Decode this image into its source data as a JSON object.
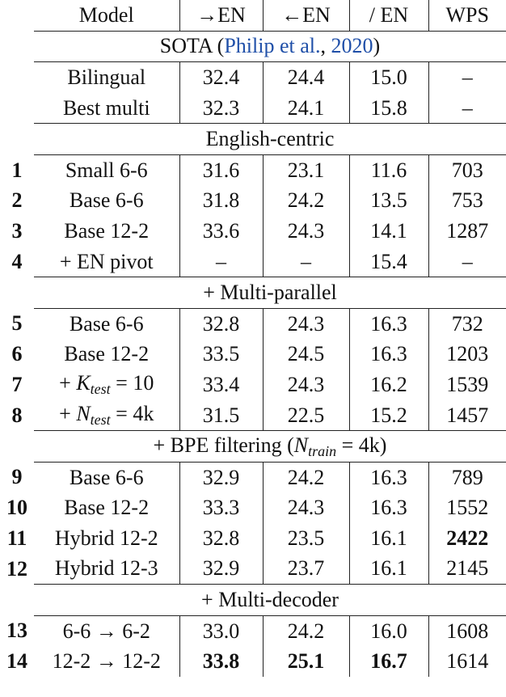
{
  "table": {
    "header": [
      "Model",
      "→EN",
      "←EN",
      "/ EN",
      "WPS"
    ],
    "sections": [
      {
        "title": [
          "SOTA (",
          {
            "text": "Philip et al.",
            "style": "cite"
          },
          ", ",
          {
            "text": "2020",
            "style": "cite"
          },
          ")"
        ],
        "rows": [
          {
            "model": "Bilingual",
            "cells": [
              "32.4",
              "24.4",
              "15.0",
              "–"
            ]
          },
          {
            "model": "Best multi",
            "cells": [
              "32.3",
              "24.1",
              "15.8",
              "–"
            ]
          }
        ]
      },
      {
        "title": "English-centric",
        "rows": [
          {
            "id": "1",
            "model": "Small 6-6",
            "cells": [
              "31.6",
              "23.1",
              "11.6",
              "703"
            ]
          },
          {
            "id": "2",
            "model": "Base 6-6",
            "cells": [
              "31.8",
              "24.2",
              "13.5",
              "753"
            ]
          },
          {
            "id": "3",
            "model": "Base 12-2",
            "cells": [
              "33.6",
              "24.3",
              "14.1",
              "1287"
            ]
          },
          {
            "id": "4",
            "model": "+ EN pivot",
            "cells": [
              "–",
              "–",
              "15.4",
              "–"
            ]
          }
        ]
      },
      {
        "title": "+ Multi-parallel",
        "rows": [
          {
            "id": "5",
            "model": "Base 6-6",
            "cells": [
              "32.8",
              "24.3",
              "16.3",
              "732"
            ]
          },
          {
            "id": "6",
            "model": "Base 12-2",
            "cells": [
              "33.5",
              "24.5",
              "16.3",
              "1203"
            ]
          },
          {
            "id": "7",
            "model": [
              "+ ",
              {
                "text": "K",
                "style": "math"
              },
              {
                "text": "test",
                "style": "sub"
              },
              " = 10"
            ],
            "cells": [
              "33.4",
              "24.3",
              "16.2",
              "1539"
            ]
          },
          {
            "id": "8",
            "model": [
              "+ ",
              {
                "text": "N",
                "style": "math"
              },
              {
                "text": "test",
                "style": "sub"
              },
              " = 4k"
            ],
            "cells": [
              "31.5",
              "22.5",
              "15.2",
              "1457"
            ]
          }
        ]
      },
      {
        "title": [
          "+ BPE filtering (",
          {
            "text": "N",
            "style": "math"
          },
          {
            "text": "train",
            "style": "sub"
          },
          " = 4k)"
        ],
        "rows": [
          {
            "id": "9",
            "model": "Base 6-6",
            "cells": [
              "32.9",
              "24.2",
              "16.3",
              "789"
            ]
          },
          {
            "id": "10",
            "model": "Base 12-2",
            "cells": [
              "33.3",
              "24.3",
              "16.3",
              "1552"
            ]
          },
          {
            "id": "11",
            "model": "Hybrid 12-2",
            "cells": [
              "32.8",
              "23.5",
              "16.1",
              "2422"
            ],
            "bold": [
              3
            ]
          },
          {
            "id": "12",
            "model": "Hybrid 12-3",
            "cells": [
              "32.9",
              "23.7",
              "16.1",
              "2145"
            ]
          }
        ]
      },
      {
        "title": "+ Multi-decoder",
        "rows": [
          {
            "id": "13",
            "model": "6-6 → 6-2",
            "cells": [
              "33.0",
              "24.2",
              "16.0",
              "1608"
            ]
          },
          {
            "id": "14",
            "model": "12-2 → 12-2",
            "cells": [
              "33.8",
              "25.1",
              "16.7",
              "1614"
            ],
            "bold": [
              0,
              1,
              2
            ]
          }
        ]
      }
    ]
  }
}
